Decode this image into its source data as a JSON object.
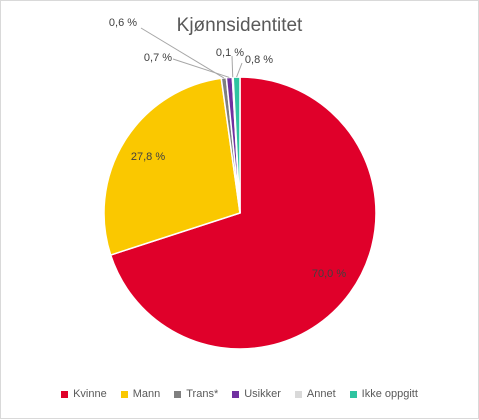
{
  "chart_data": {
    "type": "pie",
    "title": "Kjønnsidentitet",
    "categories": [
      "Kvinne",
      "Mann",
      "Trans*",
      "Usikker",
      "Annet",
      "Ikke oppgitt"
    ],
    "values": [
      70.0,
      27.8,
      0.6,
      0.7,
      0.1,
      0.8
    ],
    "value_labels": [
      "70,0 %",
      "27,8 %",
      "0,6 %",
      "0,7 %",
      "0,1 %",
      "0,8 %"
    ],
    "colors": [
      "#e0002a",
      "#fac800",
      "#7f7f7f",
      "#7030a0",
      "#d9d9d9",
      "#2ec4a0"
    ],
    "legend_position": "bottom"
  }
}
